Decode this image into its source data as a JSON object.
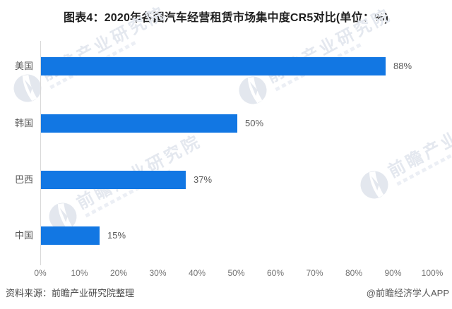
{
  "title": "图表4：2020年各国汽车经营租赁市场集中度CR5对比(单位：%)",
  "chart_data": {
    "type": "bar",
    "orientation": "horizontal",
    "title": "图表4：2020年各国汽车经营租赁市场集中度CR5对比(单位：%)",
    "categories": [
      "美国",
      "韩国",
      "巴西",
      "中国"
    ],
    "values": [
      88,
      50,
      37,
      15
    ],
    "value_labels": [
      "88%",
      "50%",
      "37%",
      "15%"
    ],
    "xlim": [
      0,
      100
    ],
    "x_ticks": [
      "0%",
      "10%",
      "20%",
      "30%",
      "40%",
      "50%",
      "60%",
      "70%",
      "80%",
      "90%",
      "100%"
    ],
    "bar_color": "#1277e3",
    "grid": false,
    "legend": false
  },
  "watermark": {
    "text": "前瞻产业研究院",
    "logo": "qianzhan-circle-logo",
    "color": "#e4e8ef"
  },
  "footer": {
    "source": "资料来源：前瞻产业研究院整理",
    "credit": "@前瞻经济学人APP"
  }
}
